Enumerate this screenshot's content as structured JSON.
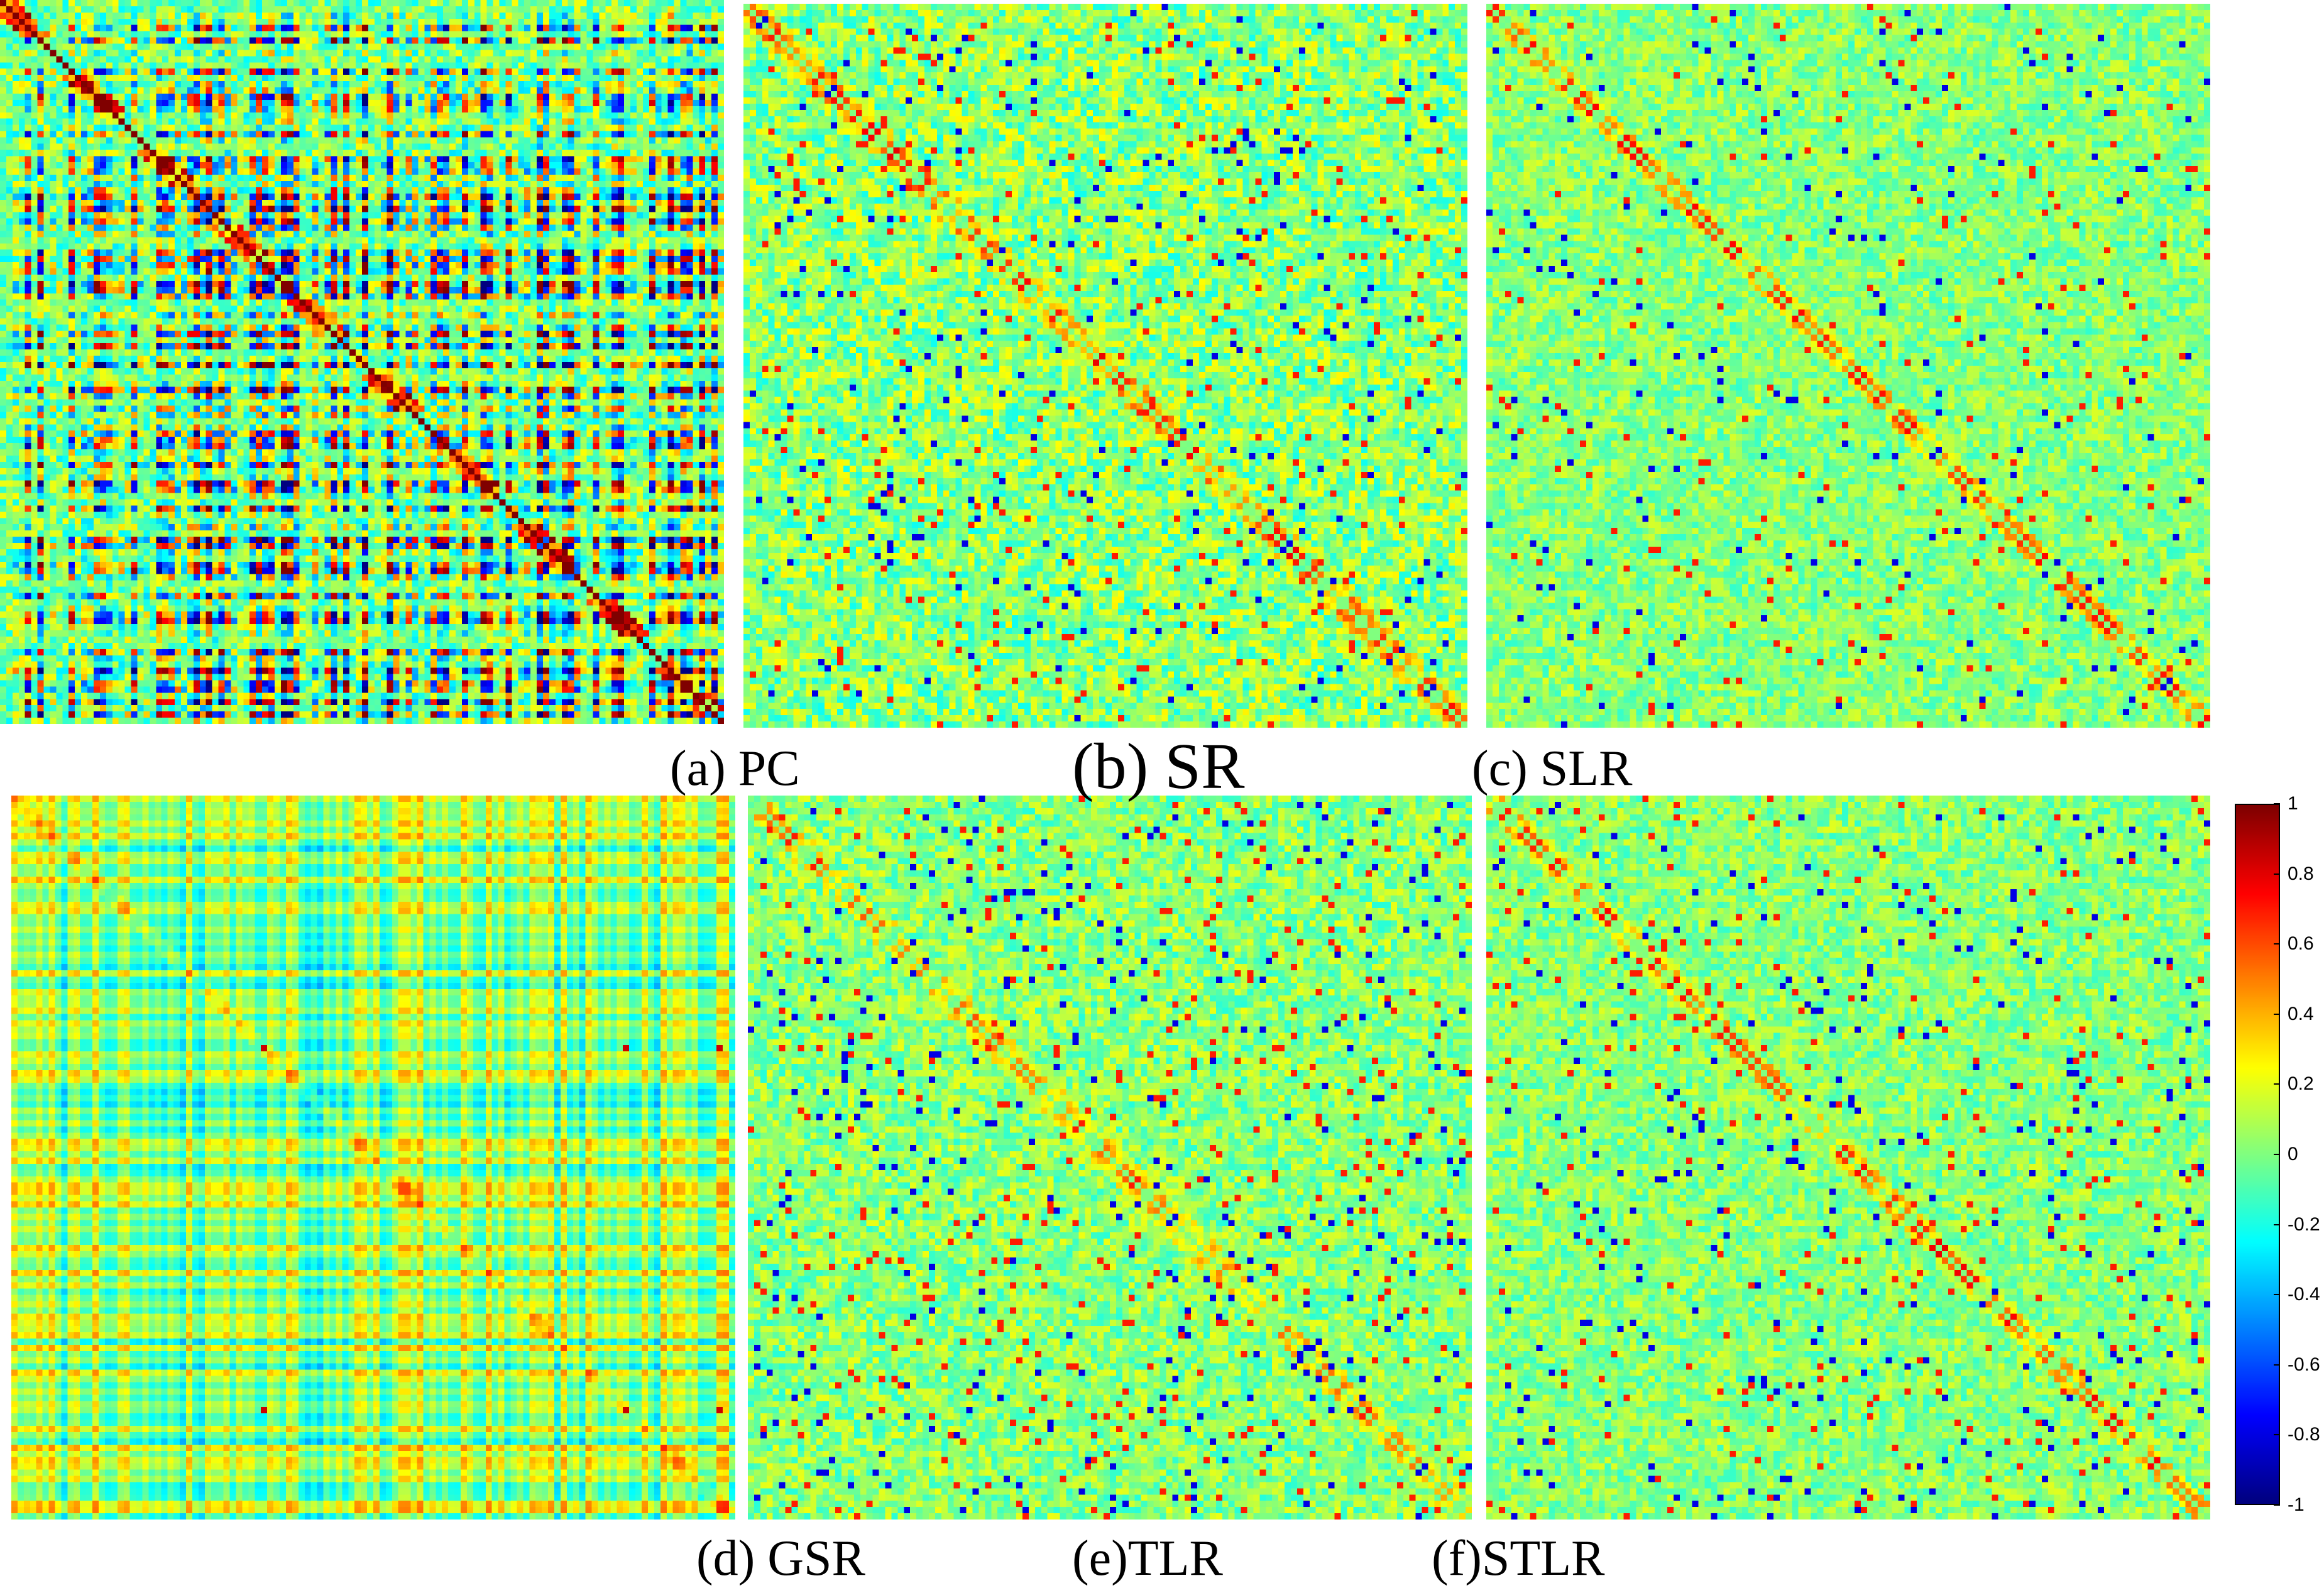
{
  "chart_data": [
    {
      "type": "heatmap",
      "panel": "a",
      "caption": "(a) PC",
      "method": "PC",
      "dominant_range": [
        -1,
        1
      ],
      "pattern": "strong block structure, red diagonal blocks on blue/orange background",
      "diagonal_value": 1.0
    },
    {
      "type": "heatmap",
      "panel": "b",
      "caption": "(b) SR",
      "method": "SR",
      "dominant_range": [
        -0.4,
        0.8
      ],
      "pattern": "sparse noise around 0 with red diagonal clusters",
      "diagonal_value": 0.8
    },
    {
      "type": "heatmap",
      "panel": "c",
      "caption": "(c) SLR",
      "method": "SLR",
      "dominant_range": [
        -0.4,
        0.8
      ],
      "pattern": "near-zero noise with distinct red/orange diagonal band",
      "diagonal_value": 0.9
    },
    {
      "type": "heatmap",
      "panel": "d",
      "caption": "(d) GSR",
      "method": "GSR",
      "dominant_range": [
        -0.3,
        0.3
      ],
      "pattern": "smooth low-contrast grid with few red spots",
      "diagonal_value": 0.3
    },
    {
      "type": "heatmap",
      "panel": "e",
      "caption": "(e)TLR",
      "method": "TLR",
      "dominant_range": [
        -0.8,
        0.8
      ],
      "pattern": "noise around 0 with scattered blue dots and faint diagonal",
      "diagonal_value": 0.7
    },
    {
      "type": "heatmap",
      "panel": "f",
      "caption": "(f)STLR",
      "method": "STLR",
      "dominant_range": [
        -0.8,
        1.0
      ],
      "pattern": "near-zero noise with strong red diagonal band",
      "diagonal_value": 0.9
    }
  ],
  "colorbar": {
    "min": -1,
    "max": 1,
    "colormap": "jet",
    "tick_labels": [
      "1",
      "0.8",
      "0.6",
      "0.4",
      "0.2",
      "0",
      "-0.2",
      "-0.4",
      "-0.6",
      "-0.8",
      "-1"
    ]
  },
  "colors": {
    "jet_low": "#00007f",
    "jet_mid": "#7fff7f",
    "jet_high": "#7f0000"
  }
}
